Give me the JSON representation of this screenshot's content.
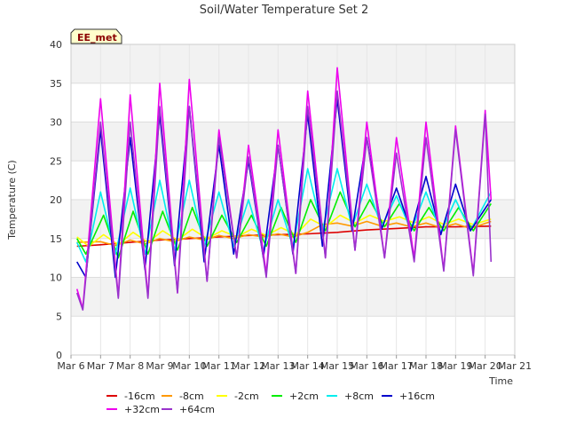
{
  "chart_data": {
    "type": "line",
    "title": "Soil/Water Temperature Set 2",
    "xlabel": "Time",
    "ylabel": "Temperature (C)",
    "badge": "EE_met",
    "ylim": [
      0,
      40
    ],
    "xlim": [
      6,
      21
    ],
    "grid": true,
    "legend_position": "bottom",
    "x_ticks": [
      {
        "v": 6,
        "label": "Mar 6"
      },
      {
        "v": 7,
        "label": "Mar 7"
      },
      {
        "v": 8,
        "label": "Mar 8"
      },
      {
        "v": 9,
        "label": "Mar 9"
      },
      {
        "v": 10,
        "label": "Mar 10"
      },
      {
        "v": 11,
        "label": "Mar 11"
      },
      {
        "v": 12,
        "label": "Mar 12"
      },
      {
        "v": 13,
        "label": "Mar 13"
      },
      {
        "v": 14,
        "label": "Mar 14"
      },
      {
        "v": 15,
        "label": "Mar 15"
      },
      {
        "v": 16,
        "label": "Mar 16"
      },
      {
        "v": 17,
        "label": "Mar 17"
      },
      {
        "v": 18,
        "label": "Mar 18"
      },
      {
        "v": 19,
        "label": "Mar 19"
      },
      {
        "v": 20,
        "label": "Mar 20"
      },
      {
        "v": 21,
        "label": "Mar 21"
      }
    ],
    "y_ticks": [
      0,
      5,
      10,
      15,
      20,
      25,
      30,
      35,
      40
    ],
    "series": [
      {
        "name": "-16cm",
        "color": "#dd0000",
        "points": [
          [
            6.2,
            14.0
          ],
          [
            7,
            14.2
          ],
          [
            8,
            14.5
          ],
          [
            9,
            14.8
          ],
          [
            10,
            15.0
          ],
          [
            11,
            15.2
          ],
          [
            12,
            15.4
          ],
          [
            13,
            15.5
          ],
          [
            14,
            15.6
          ],
          [
            15,
            15.8
          ],
          [
            16,
            16.1
          ],
          [
            17,
            16.3
          ],
          [
            18,
            16.5
          ],
          [
            19,
            16.5
          ],
          [
            20.2,
            16.6
          ]
        ]
      },
      {
        "name": "-8cm",
        "color": "#ff9900",
        "points": [
          [
            6.2,
            14.5
          ],
          [
            7,
            14.6
          ],
          [
            7.5,
            14.1
          ],
          [
            8,
            14.8
          ],
          [
            8.5,
            14.3
          ],
          [
            9,
            15.0
          ],
          [
            9.5,
            14.6
          ],
          [
            10,
            15.2
          ],
          [
            10.5,
            14.8
          ],
          [
            11,
            15.4
          ],
          [
            11.5,
            15.0
          ],
          [
            12,
            15.5
          ],
          [
            12.5,
            15.2
          ],
          [
            13,
            15.6
          ],
          [
            13.5,
            15.2
          ],
          [
            14,
            15.8
          ],
          [
            14.5,
            16.8
          ],
          [
            15,
            17.0
          ],
          [
            15.5,
            16.6
          ],
          [
            16,
            17.2
          ],
          [
            16.5,
            16.6
          ],
          [
            17,
            17.0
          ],
          [
            17.5,
            16.5
          ],
          [
            18,
            17.0
          ],
          [
            18.5,
            16.4
          ],
          [
            19,
            16.9
          ],
          [
            19.5,
            16.3
          ],
          [
            20.2,
            17.2
          ]
        ]
      },
      {
        "name": "-2cm",
        "color": "#ffff00",
        "points": [
          [
            6.2,
            15.2
          ],
          [
            6.6,
            14.0
          ],
          [
            7.1,
            15.5
          ],
          [
            7.6,
            14.2
          ],
          [
            8.1,
            15.8
          ],
          [
            8.6,
            14.5
          ],
          [
            9.1,
            16.0
          ],
          [
            9.6,
            14.8
          ],
          [
            10.1,
            16.2
          ],
          [
            10.6,
            15.0
          ],
          [
            11.1,
            16.0
          ],
          [
            11.6,
            15.2
          ],
          [
            12.1,
            16.2
          ],
          [
            12.6,
            15.4
          ],
          [
            13.1,
            16.4
          ],
          [
            13.6,
            15.5
          ],
          [
            14.1,
            17.5
          ],
          [
            14.6,
            16.5
          ],
          [
            15.1,
            18.0
          ],
          [
            15.6,
            17.0
          ],
          [
            16.1,
            18.0
          ],
          [
            16.6,
            17.2
          ],
          [
            17.1,
            17.8
          ],
          [
            17.6,
            17.0
          ],
          [
            18.1,
            17.8
          ],
          [
            18.6,
            16.8
          ],
          [
            19.1,
            17.5
          ],
          [
            19.6,
            16.8
          ],
          [
            20.2,
            17.5
          ]
        ]
      },
      {
        "name": "+2cm",
        "color": "#00ee00",
        "points": [
          [
            6.2,
            15.0
          ],
          [
            6.5,
            13.0
          ],
          [
            7.1,
            18.0
          ],
          [
            7.6,
            12.5
          ],
          [
            8.1,
            18.5
          ],
          [
            8.6,
            13.0
          ],
          [
            9.1,
            18.5
          ],
          [
            9.6,
            13.5
          ],
          [
            10.1,
            19.0
          ],
          [
            10.6,
            14.0
          ],
          [
            11.1,
            18.0
          ],
          [
            11.6,
            14.5
          ],
          [
            12.1,
            18.0
          ],
          [
            12.6,
            14.0
          ],
          [
            13.1,
            19.0
          ],
          [
            13.6,
            14.5
          ],
          [
            14.1,
            20.0
          ],
          [
            14.6,
            16.0
          ],
          [
            15.1,
            21.0
          ],
          [
            15.6,
            16.5
          ],
          [
            16.1,
            20.0
          ],
          [
            16.6,
            16.5
          ],
          [
            17.1,
            19.5
          ],
          [
            17.6,
            16.0
          ],
          [
            18.1,
            19.0
          ],
          [
            18.6,
            16.0
          ],
          [
            19.1,
            19.0
          ],
          [
            19.6,
            16.0
          ],
          [
            20.2,
            19.5
          ]
        ]
      },
      {
        "name": "+8cm",
        "color": "#00eeee",
        "points": [
          [
            6.2,
            14.5
          ],
          [
            6.5,
            12.0
          ],
          [
            7.0,
            21.0
          ],
          [
            7.5,
            13.0
          ],
          [
            8.0,
            21.5
          ],
          [
            8.5,
            13.0
          ],
          [
            9.0,
            22.5
          ],
          [
            9.5,
            13.5
          ],
          [
            10.0,
            22.5
          ],
          [
            10.5,
            14.0
          ],
          [
            11.0,
            21.0
          ],
          [
            11.5,
            14.0
          ],
          [
            12.0,
            20.0
          ],
          [
            12.5,
            13.5
          ],
          [
            13.0,
            20.0
          ],
          [
            13.5,
            14.0
          ],
          [
            14.0,
            24.0
          ],
          [
            14.5,
            16.0
          ],
          [
            15.0,
            24.0
          ],
          [
            15.5,
            16.5
          ],
          [
            16.0,
            22.0
          ],
          [
            16.5,
            16.5
          ],
          [
            17.0,
            20.5
          ],
          [
            17.5,
            16.0
          ],
          [
            18.0,
            21.0
          ],
          [
            18.5,
            15.8
          ],
          [
            19.0,
            20.0
          ],
          [
            19.5,
            16.0
          ],
          [
            20.2,
            21.0
          ]
        ]
      },
      {
        "name": "+16cm",
        "color": "#0000cc",
        "points": [
          [
            6.2,
            12.0
          ],
          [
            6.5,
            10.0
          ],
          [
            7.0,
            29.0
          ],
          [
            7.5,
            10.0
          ],
          [
            8.0,
            28.0
          ],
          [
            8.5,
            11.0
          ],
          [
            9.0,
            31.0
          ],
          [
            9.5,
            11.5
          ],
          [
            10.0,
            32.0
          ],
          [
            10.5,
            12.0
          ],
          [
            11.0,
            27.0
          ],
          [
            11.5,
            13.0
          ],
          [
            12.0,
            25.0
          ],
          [
            12.5,
            12.5
          ],
          [
            13.0,
            27.0
          ],
          [
            13.5,
            13.0
          ],
          [
            14.0,
            31.0
          ],
          [
            14.5,
            14.0
          ],
          [
            15.0,
            33.0
          ],
          [
            15.5,
            16.0
          ],
          [
            16.0,
            28.0
          ],
          [
            16.5,
            16.2
          ],
          [
            17.0,
            21.5
          ],
          [
            17.5,
            16.0
          ],
          [
            18.0,
            23.0
          ],
          [
            18.5,
            15.5
          ],
          [
            19.0,
            22.0
          ],
          [
            19.5,
            16.0
          ],
          [
            20.2,
            20.0
          ]
        ]
      },
      {
        "name": "+32cm",
        "color": "#ee00ee",
        "points": [
          [
            6.2,
            8.5
          ],
          [
            6.4,
            6.0
          ],
          [
            7.0,
            33.0
          ],
          [
            7.6,
            7.5
          ],
          [
            8.0,
            33.5
          ],
          [
            8.6,
            7.5
          ],
          [
            9.0,
            35.0
          ],
          [
            9.6,
            8.0
          ],
          [
            10.0,
            35.5
          ],
          [
            10.6,
            9.5
          ],
          [
            11.0,
            29.0
          ],
          [
            11.6,
            12.5
          ],
          [
            12.0,
            27.0
          ],
          [
            12.6,
            10.5
          ],
          [
            13.0,
            29.0
          ],
          [
            13.6,
            10.5
          ],
          [
            14.0,
            34.0
          ],
          [
            14.6,
            12.5
          ],
          [
            15.0,
            37.0
          ],
          [
            15.6,
            13.5
          ],
          [
            16.0,
            30.0
          ],
          [
            16.6,
            12.5
          ],
          [
            17.0,
            28.0
          ],
          [
            17.6,
            12.5
          ],
          [
            18.0,
            30.0
          ],
          [
            18.6,
            11.0
          ],
          [
            19.0,
            29.5
          ],
          [
            19.6,
            10.5
          ],
          [
            20.0,
            31.5
          ],
          [
            20.2,
            20.0
          ]
        ]
      },
      {
        "name": "+64cm",
        "color": "#9933cc",
        "points": [
          [
            6.2,
            8.0
          ],
          [
            6.4,
            5.8
          ],
          [
            7.0,
            30.0
          ],
          [
            7.6,
            7.3
          ],
          [
            8.0,
            30.0
          ],
          [
            8.6,
            7.3
          ],
          [
            9.0,
            32.0
          ],
          [
            9.6,
            8.0
          ],
          [
            10.0,
            32.0
          ],
          [
            10.6,
            9.5
          ],
          [
            11.0,
            28.0
          ],
          [
            11.6,
            12.5
          ],
          [
            12.0,
            25.5
          ],
          [
            12.6,
            10.0
          ],
          [
            13.0,
            27.0
          ],
          [
            13.6,
            10.5
          ],
          [
            14.0,
            32.0
          ],
          [
            14.6,
            12.5
          ],
          [
            15.0,
            34.0
          ],
          [
            15.6,
            13.5
          ],
          [
            16.0,
            28.0
          ],
          [
            16.6,
            12.5
          ],
          [
            17.0,
            26.0
          ],
          [
            17.6,
            12.0
          ],
          [
            18.0,
            28.0
          ],
          [
            18.6,
            10.8
          ],
          [
            19.0,
            29.0
          ],
          [
            19.6,
            10.2
          ],
          [
            20.0,
            31.0
          ],
          [
            20.2,
            12.0
          ]
        ]
      }
    ]
  }
}
